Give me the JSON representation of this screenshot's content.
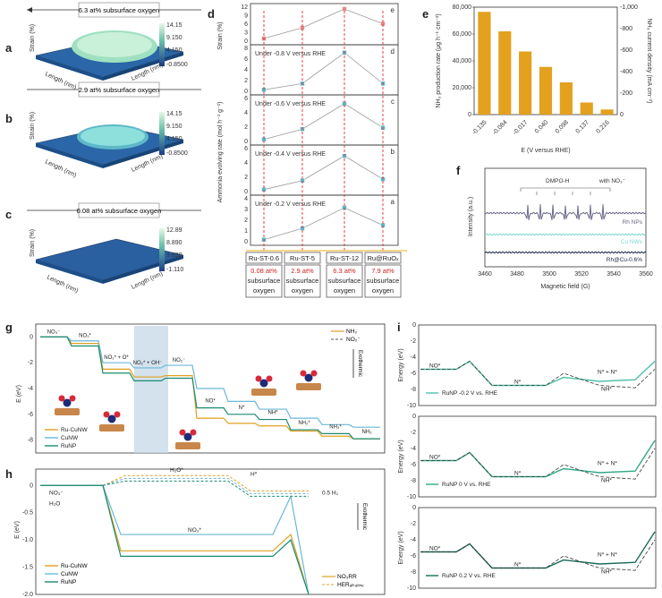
{
  "panels": {
    "a": {
      "letter": "a",
      "caption": "6.3 at% subsurface oxygen",
      "zmax": "14.15",
      "z1": "9.150",
      "z2": "4.150",
      "zmin": "-0.8500"
    },
    "b": {
      "letter": "b",
      "caption": "2.9 at% subsurface oxygen",
      "zmax": "14.15",
      "z1": "9.150",
      "z2": "4.150",
      "zmin": "-0.8500"
    },
    "c": {
      "letter": "c",
      "caption": "0.08 at% subsurface oxygen",
      "zmax": "12.89",
      "z1": "8.890",
      "z2": "3.890",
      "zmin": "-1.110"
    },
    "surface_axes": {
      "x": "Length (nm)",
      "y": "Length (nm)",
      "z": "Strain (%)"
    },
    "d": {
      "letter": "d",
      "strain_label": "Strain (%)",
      "rate_label": "Ammonia evolving rate (mol h⁻¹ g⁻¹)",
      "subpanels": [
        {
          "letter": "e",
          "label": "",
          "ticks": [
            "12",
            "9",
            "6",
            "3",
            "0"
          ]
        },
        {
          "letter": "d",
          "label": "Under -0.8 V versus RHE",
          "ticks": [
            "8",
            "6",
            "4",
            "2",
            "0"
          ]
        },
        {
          "letter": "c",
          "label": "Under -0.6 V versus RHE",
          "ticks": [
            "6",
            "4",
            "2",
            "0"
          ]
        },
        {
          "letter": "b",
          "label": "Under -0.4 V versus RHE",
          "ticks": [
            "6",
            "4",
            "2",
            "0"
          ]
        },
        {
          "letter": "a",
          "label": "Under -0.2 V versus RHE",
          "ticks": [
            "4",
            "3",
            "2",
            "1",
            "0"
          ]
        }
      ],
      "samples": [
        {
          "name": "Ru-ST-0.6",
          "oxygen": "0.08 at%",
          "sub1": "subsurface",
          "sub2": "oxygen"
        },
        {
          "name": "Ru-ST-5",
          "oxygen": "2.9 at%",
          "sub1": "subsurface",
          "sub2": "oxygen"
        },
        {
          "name": "Ru-ST-12",
          "oxygen": "6.3 at%",
          "sub1": "subsurface",
          "sub2": "oxygen"
        },
        {
          "name": "Ru@RuOₓ",
          "oxygen": "7.9 at%",
          "sub1": "subsurface",
          "sub2": "oxygen"
        }
      ]
    },
    "f": {
      "letter": "f",
      "xlabel": "Magnetic field (G)",
      "ylabel": "Intensity (a.u.)",
      "dmpo": "DMPO-H",
      "with": "with NO₃⁻",
      "ticks": [
        "3460",
        "3480",
        "3500",
        "3520",
        "3540",
        "3560"
      ],
      "traces": [
        {
          "name": "Rh NPs",
          "color": "#6a6a8a"
        },
        {
          "name": "Cu NWs",
          "color": "#7dd9cf"
        },
        {
          "name": "Rh@Cu-0.6%",
          "color": "#1d2a4a"
        }
      ]
    },
    "g": {
      "letter": "g",
      "ylabel": "E (eV)",
      "ticks": [
        "0",
        "-2",
        "-4",
        "-6",
        "-8"
      ],
      "species": [
        "NO₃⁻",
        "NO₃*",
        "NO₂* + O*",
        "NO₂* + OH⁻",
        "NO₂⁻",
        "NO*",
        "N*",
        "NH*",
        "NH₂*",
        "NH₃*",
        "NH₃"
      ],
      "legend": [
        "Ru-CuNW",
        "CuNW",
        "RuNP"
      ],
      "legend2": [
        "NH₃",
        "NO₂⁻"
      ],
      "exo": "Exothermic"
    },
    "h": {
      "letter": "h",
      "ylabel": "E (eV)",
      "ticks": [
        "0",
        "-0.5",
        "-1.0",
        "-1.5",
        "-2.0"
      ],
      "species": [
        "NO₃⁻",
        "H₂O",
        "H₂O*",
        "NO₃*",
        "H*",
        "0.5 H₂"
      ],
      "legend": [
        "Ru-CuNW",
        "CuNW",
        "RuNP"
      ],
      "legend2": [
        "NO₃RR",
        "HERₐₗₖₐₗᵢₙₑ"
      ],
      "exo": "Exothermic"
    },
    "i": {
      "letter": "i",
      "ylabel": "Energy (eV)",
      "ticks": [
        "0",
        "-2",
        "-4",
        "-6",
        "-8",
        "-10"
      ],
      "species": [
        "NO*",
        "N*",
        "N* + N*",
        "NH*"
      ],
      "legends": [
        "RuNP -0.2 V vs. RHE",
        "RuNP 0 V vs. RHE",
        "RuNP 0.2 V vs. RHE"
      ]
    }
  },
  "chart_data": [
    {
      "type": "bar",
      "panel": "e",
      "categories": [
        "-0.135",
        "-0.084",
        "-0.017",
        "0.040",
        "0.098",
        "0.137",
        "0.216"
      ],
      "values": [
        76500,
        62000,
        47000,
        35500,
        24000,
        9000,
        3800
      ],
      "xlabel": "E (V versus RHE)",
      "ylabel": "NH₃ production rate (μg h⁻¹ cm⁻²)",
      "y2label": "NH₃ current density (mA cm⁻²)",
      "ylim": [
        0,
        80000
      ],
      "yticks": [
        "0",
        "20,000",
        "40,000",
        "60,000",
        "80,000"
      ],
      "y2ticks": [
        "0",
        "-200",
        "-400",
        "-600",
        "-800",
        "-1,000"
      ],
      "color": "#e3a11e"
    },
    {
      "type": "line",
      "panel": "d",
      "categories": [
        "Ru-ST-0.6",
        "Ru-ST-5",
        "Ru-ST-12",
        "Ru@RuOx"
      ],
      "series": [
        {
          "name": "Strain (%)",
          "values": [
            1,
            5,
            12,
            6.5
          ],
          "ylim": [
            0,
            12
          ]
        },
        {
          "name": "Under -0.8 V versus RHE",
          "values": [
            0.3,
            1.5,
            7.5,
            1.5
          ],
          "ylim": [
            0,
            8
          ]
        },
        {
          "name": "Under -0.6 V versus RHE",
          "values": [
            0.3,
            1.8,
            5.5,
            2.0
          ],
          "ylim": [
            0,
            6
          ]
        },
        {
          "name": "Under -0.4 V versus RHE",
          "values": [
            0.3,
            1.6,
            5.2,
            1.8
          ],
          "ylim": [
            0,
            6
          ]
        },
        {
          "name": "Under -0.2 V versus RHE",
          "values": [
            0.2,
            1.3,
            3.3,
            1.6
          ],
          "ylim": [
            0,
            4
          ]
        }
      ]
    }
  ]
}
